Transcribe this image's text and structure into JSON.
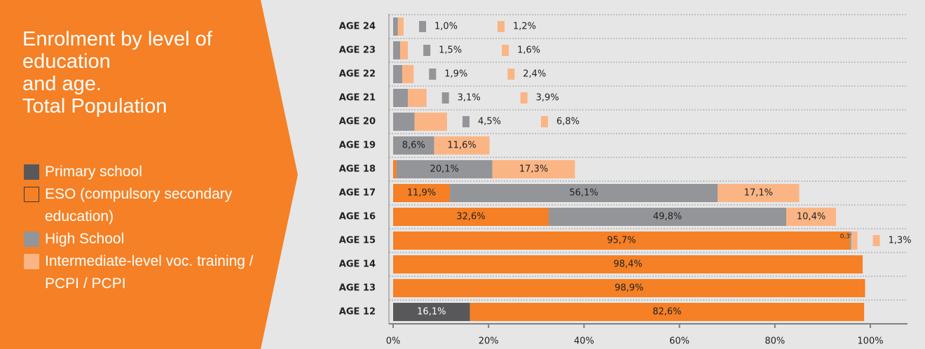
{
  "chart_data": {
    "type": "stacked-barh",
    "title": "Enrolment by level of\neducation\nand age.\nTotal Population",
    "categories": [
      "AGE 24",
      "AGE 23",
      "AGE 22",
      "AGE 21",
      "AGE 20",
      "AGE 19",
      "AGE 18",
      "AGE 17",
      "AGE 16",
      "AGE 15",
      "AGE 14",
      "AGE 13",
      "AGE 12"
    ],
    "series": [
      {
        "name": "Primary school",
        "color": "#58585a",
        "values": [
          null,
          null,
          null,
          null,
          null,
          null,
          null,
          null,
          null,
          null,
          null,
          null,
          16.1
        ],
        "value_labels": [
          null,
          null,
          null,
          null,
          null,
          null,
          null,
          null,
          null,
          null,
          null,
          null,
          "16,1%"
        ]
      },
      {
        "name": "ESO (compulsory secondary education)",
        "color": "#f58025",
        "values": [
          null,
          null,
          null,
          null,
          null,
          null,
          0.7,
          11.9,
          32.6,
          95.7,
          98.4,
          98.9,
          82.6
        ],
        "value_labels": [
          null,
          null,
          null,
          null,
          null,
          null,
          "0,7%",
          "11,9%",
          "32,6%",
          "95,7%",
          "98,4%",
          "98,9%",
          "82,6%"
        ]
      },
      {
        "name": "High School",
        "color": "#939598",
        "values": [
          1.0,
          1.5,
          1.9,
          3.1,
          4.5,
          8.6,
          20.1,
          56.1,
          49.8,
          0.3,
          null,
          null,
          null
        ],
        "value_labels": [
          "1,0%",
          "1,5%",
          "1,9%",
          "3,1%",
          "4,5%",
          "8,6%",
          "20,1%",
          "56,1%",
          "49,8%",
          "0,3%",
          null,
          null,
          null
        ]
      },
      {
        "name": "Intermediate-level voc. training / PCPI / PCPI",
        "color": "#fbb584",
        "values": [
          1.2,
          1.6,
          2.4,
          3.9,
          6.8,
          11.6,
          17.3,
          17.1,
          10.4,
          1.3,
          null,
          null,
          null
        ],
        "value_labels": [
          "1,2%",
          "1,6%",
          "2,4%",
          "3,9%",
          "6,8%",
          "11,6%",
          "17,3%",
          "17,1%",
          "10,4%",
          "1,3%",
          null,
          null,
          null
        ]
      }
    ],
    "xlim": [
      0,
      100
    ],
    "xticks": [
      {
        "value": 0,
        "label": "0%"
      },
      {
        "value": 20,
        "label": "20%"
      },
      {
        "value": 40,
        "label": "40%"
      },
      {
        "value": 60,
        "label": "60%"
      },
      {
        "value": 80,
        "label": "80%"
      },
      {
        "value": 100,
        "label": "100%"
      }
    ]
  }
}
